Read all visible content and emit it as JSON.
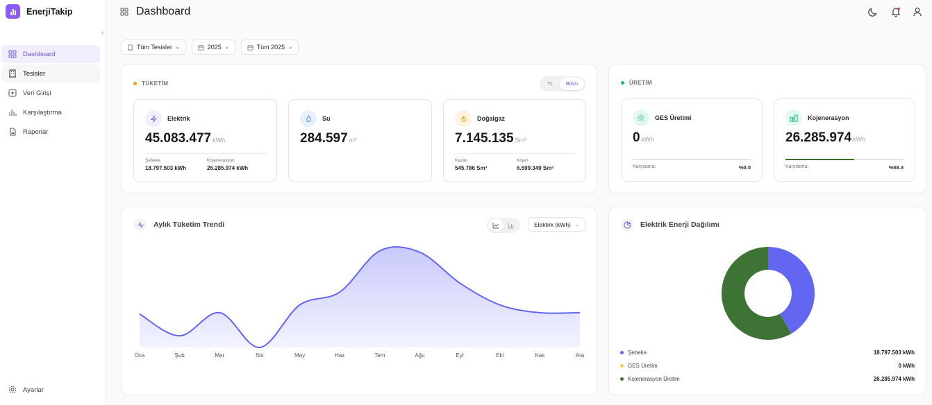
{
  "app": {
    "name": "EnerjiTakip"
  },
  "sidebar": {
    "items": [
      {
        "label": "Dashboard",
        "icon": "grid-icon"
      },
      {
        "label": "Tesisler",
        "icon": "building-icon"
      },
      {
        "label": "Veri Girişi",
        "icon": "plus-square-icon"
      },
      {
        "label": "Karşılaştırma",
        "icon": "bar-chart-icon"
      },
      {
        "label": "Raporlar",
        "icon": "file-icon"
      }
    ],
    "settings_label": "Ayarlar"
  },
  "header": {
    "title": "Dashboard"
  },
  "filters": {
    "facility": "Tüm Tesisler",
    "year": "2025",
    "period": "Tüm 2025"
  },
  "consumption": {
    "title": "TÜKETİM",
    "toggle": [
      "TL",
      "Birim"
    ],
    "active_toggle": "Birim",
    "electric": {
      "title": "Elektrik",
      "value": "45.083.477",
      "unit": "kWh",
      "sub1_label": "Şebeke",
      "sub1_value": "18.797.503 kWh",
      "sub2_label": "Kojenerasyon",
      "sub2_value": "26.285.974 kWh"
    },
    "water": {
      "title": "Su",
      "value": "284.597",
      "unit": "m³"
    },
    "gas": {
      "title": "Doğalgaz",
      "value": "7.145.135",
      "unit": "Sm³",
      "sub1_label": "Kazan",
      "sub1_value": "545.786 Sm³",
      "sub2_label": "Kojen",
      "sub2_value": "6.599.349 Sm³"
    }
  },
  "production": {
    "title": "ÜRETİM",
    "ges": {
      "title": "GES Üretimi",
      "value": "0",
      "unit": "kWh",
      "coverage_label": "Karşılama:",
      "coverage_text": "%0.0",
      "coverage": 0.0
    },
    "cogen": {
      "title": "Kojenerasyon",
      "value": "26.285.974",
      "unit": "kWh",
      "coverage_label": "Karşılama:",
      "coverage_text": "%58.3",
      "coverage": 58.3
    }
  },
  "trend": {
    "title": "Aylık Tüketim Trendi",
    "select": "Elektrik (kWh)"
  },
  "distribution": {
    "title": "Elektrik Enerji Dağılımı",
    "legend": [
      {
        "label": "Şebeke",
        "value": "18.797.503 kWh",
        "color": "#6366f1"
      },
      {
        "label": "GES Üretim",
        "value": "0 kWh",
        "color": "#f5d042"
      },
      {
        "label": "Kojenerasyon Üretim",
        "value": "26.285.974 kWh",
        "color": "#3d7334"
      }
    ]
  },
  "chart_data": [
    {
      "type": "area",
      "title": "Aylık Tüketim Trendi",
      "categories": [
        "Oca",
        "Şub",
        "Mar",
        "Nis",
        "May",
        "Haz",
        "Tem",
        "Ağu",
        "Eyl",
        "Eki",
        "Kas",
        "Ara"
      ],
      "series": [
        {
          "values": [
            2.6,
            0.9,
            2.7,
            0.0,
            3.3,
            4.3,
            7.5,
            7.4,
            5.0,
            3.3,
            2.7,
            2.7
          ]
        }
      ],
      "color": "#6366f1",
      "grid": false
    },
    {
      "type": "pie",
      "title": "Elektrik Enerji Dağılımı",
      "categories": [
        "Şebeke",
        "GES Üretim",
        "Kojenerasyon Üretim"
      ],
      "values": [
        18797503,
        0,
        26285974
      ],
      "colors": [
        "#6366f1",
        "#f5d042",
        "#3d7334"
      ],
      "donut": true
    }
  ]
}
